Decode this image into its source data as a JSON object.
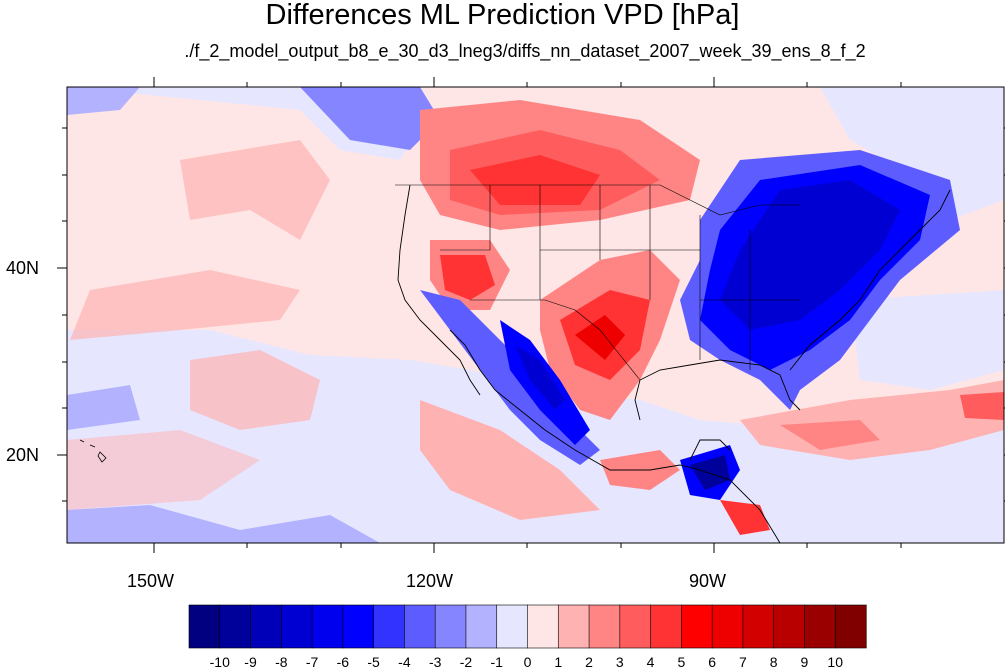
{
  "title": "Differences ML Prediction VPD [hPa]",
  "subtitle": "./f_2_model_output_b8_e_30_d3_lneg3/diffs_nn_dataset_2007_week_39_ens_8_f_2",
  "map": {
    "projection": "lat-lon",
    "lon_range": [
      -160,
      -60
    ],
    "lat_range": [
      10,
      59
    ],
    "x_tick_labels": [
      "150W",
      "120W",
      "90W"
    ],
    "y_tick_labels": [
      "40N",
      "20N"
    ],
    "features": {
      "positive_anomalies": [
        "US northern plains",
        "Southwest US",
        "Texas / northern Mexico",
        "Caribbean",
        "Central America"
      ],
      "negative_anomalies": [
        "Eastern US",
        "Great Lakes / Ontario",
        "Baja California / western Mexico",
        "Gulf of Honduras"
      ]
    }
  },
  "colorbar": {
    "labels": [
      "-10",
      "-9",
      "-8",
      "-7",
      "-6",
      "-5",
      "-4",
      "-3",
      "-2",
      "-1",
      "0",
      "1",
      "2",
      "3",
      "4",
      "5",
      "6",
      "7",
      "8",
      "9",
      "10"
    ],
    "colors": [
      "#000080",
      "#00009b",
      "#0000b8",
      "#0000d3",
      "#0000ee",
      "#0000ff",
      "#3333ff",
      "#5d5dff",
      "#8585ff",
      "#b2b2ff",
      "#e6e6ff",
      "#ffe6e6",
      "#ffb2b2",
      "#ff8585",
      "#ff5d5d",
      "#ff3333",
      "#ff0000",
      "#ee0000",
      "#d30000",
      "#b80000",
      "#9b0000",
      "#800000"
    ]
  }
}
